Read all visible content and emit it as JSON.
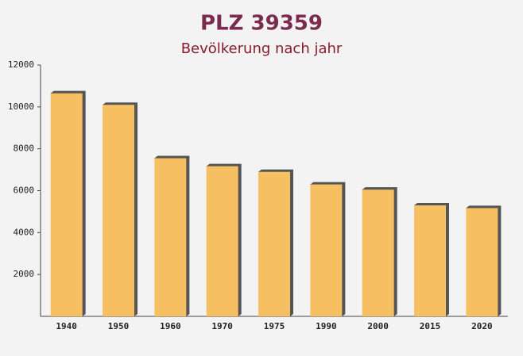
{
  "chart_data": {
    "type": "bar",
    "title": "PLZ 39359",
    "subtitle": "Bevölkerung nach jahr",
    "categories": [
      "1940",
      "1950",
      "1960",
      "1970",
      "1975",
      "1990",
      "2000",
      "2015",
      "2020"
    ],
    "values": [
      10650,
      10100,
      7550,
      7170,
      6900,
      6300,
      6050,
      5300,
      5170
    ],
    "color": "#f6bf62",
    "ylim": [
      0,
      12000
    ],
    "yticks": [
      2000,
      4000,
      6000,
      8000,
      10000,
      12000
    ]
  }
}
